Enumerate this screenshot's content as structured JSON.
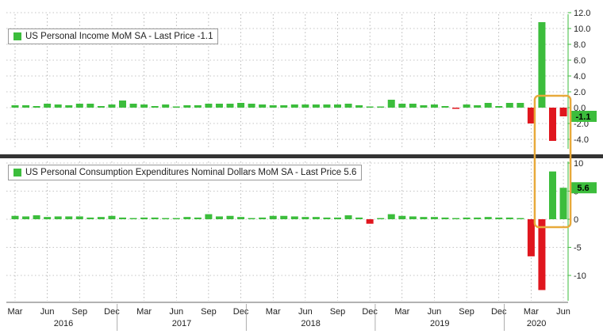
{
  "chart_data": [
    {
      "type": "bar",
      "title": "US Personal Income MoM SA - Last Price -1.1",
      "series": [
        {
          "name": "US Personal Income MoM SA",
          "last_price_label": "Last Price",
          "last_price": "-1.1"
        }
      ],
      "x": [
        "2016-03",
        "2016-04",
        "2016-05",
        "2016-06",
        "2016-07",
        "2016-08",
        "2016-09",
        "2016-10",
        "2016-11",
        "2016-12",
        "2017-01",
        "2017-02",
        "2017-03",
        "2017-04",
        "2017-05",
        "2017-06",
        "2017-07",
        "2017-08",
        "2017-09",
        "2017-10",
        "2017-11",
        "2017-12",
        "2018-01",
        "2018-02",
        "2018-03",
        "2018-04",
        "2018-05",
        "2018-06",
        "2018-07",
        "2018-08",
        "2018-09",
        "2018-10",
        "2018-11",
        "2018-12",
        "2019-01",
        "2019-02",
        "2019-03",
        "2019-04",
        "2019-05",
        "2019-06",
        "2019-07",
        "2019-08",
        "2019-09",
        "2019-10",
        "2019-11",
        "2019-12",
        "2020-01",
        "2020-02",
        "2020-03",
        "2020-04",
        "2020-05",
        "2020-06"
      ],
      "values": [
        0.3,
        0.3,
        0.2,
        0.5,
        0.4,
        0.3,
        0.5,
        0.5,
        0.2,
        0.4,
        0.9,
        0.5,
        0.4,
        0.2,
        0.4,
        0.1,
        0.3,
        0.3,
        0.5,
        0.5,
        0.5,
        0.6,
        0.5,
        0.4,
        0.3,
        0.3,
        0.4,
        0.4,
        0.4,
        0.4,
        0.4,
        0.5,
        0.3,
        0.1,
        0.1,
        1.0,
        0.5,
        0.5,
        0.3,
        0.4,
        0.2,
        -0.1,
        0.4,
        0.3,
        0.6,
        0.2,
        0.6,
        0.6,
        -2.0,
        10.8,
        -4.2,
        -1.1
      ],
      "yticks": [
        "12.0",
        "10.0",
        "8.0",
        "6.0",
        "4.0",
        "2.0",
        "0.0",
        "-2.0",
        "-4.0"
      ],
      "ylim": [
        -5.5,
        12.0
      ],
      "last_label": "-1.1",
      "colors": {
        "positive": "#3cbd3c",
        "negative": "#e0161e"
      }
    },
    {
      "type": "bar",
      "title": "US Personal Consumption Expenditures Nominal Dollars MoM SA - Last Price 5.6",
      "series": [
        {
          "name": "US Personal Consumption Expenditures Nominal Dollars MoM SA",
          "last_price_label": "Last Price",
          "last_price": "5.6"
        }
      ],
      "x": [
        "2016-03",
        "2016-04",
        "2016-05",
        "2016-06",
        "2016-07",
        "2016-08",
        "2016-09",
        "2016-10",
        "2016-11",
        "2016-12",
        "2017-01",
        "2017-02",
        "2017-03",
        "2017-04",
        "2017-05",
        "2017-06",
        "2017-07",
        "2017-08",
        "2017-09",
        "2017-10",
        "2017-11",
        "2017-12",
        "2018-01",
        "2018-02",
        "2018-03",
        "2018-04",
        "2018-05",
        "2018-06",
        "2018-07",
        "2018-08",
        "2018-09",
        "2018-10",
        "2018-11",
        "2018-12",
        "2019-01",
        "2019-02",
        "2019-03",
        "2019-04",
        "2019-05",
        "2019-06",
        "2019-07",
        "2019-08",
        "2019-09",
        "2019-10",
        "2019-11",
        "2019-12",
        "2020-01",
        "2020-02",
        "2020-03",
        "2020-04",
        "2020-05",
        "2020-06"
      ],
      "values": [
        0.6,
        0.5,
        0.7,
        0.4,
        0.5,
        0.5,
        0.5,
        0.3,
        0.4,
        0.6,
        0.3,
        0.2,
        0.3,
        0.3,
        0.2,
        0.2,
        0.4,
        0.3,
        0.9,
        0.5,
        0.6,
        0.4,
        0.2,
        0.3,
        0.6,
        0.6,
        0.5,
        0.4,
        0.4,
        0.3,
        0.3,
        0.7,
        0.3,
        -0.8,
        0.1,
        0.9,
        0.6,
        0.5,
        0.4,
        0.4,
        0.3,
        0.2,
        0.3,
        0.3,
        0.4,
        0.3,
        0.3,
        0.2,
        -6.6,
        -12.6,
        8.5,
        5.6
      ],
      "yticks": [
        "10",
        "5",
        "0",
        "-5",
        "-10"
      ],
      "ylim": [
        -13.5,
        11.5
      ],
      "last_label": "5.6",
      "colors": {
        "positive": "#3cbd3c",
        "negative": "#e0161e"
      }
    }
  ],
  "x_axis": {
    "month_labels": [
      {
        "month": "2016-03",
        "label": "Mar"
      },
      {
        "month": "2016-06",
        "label": "Jun"
      },
      {
        "month": "2016-09",
        "label": "Sep"
      },
      {
        "month": "2016-12",
        "label": "Dec"
      },
      {
        "month": "2017-03",
        "label": "Mar"
      },
      {
        "month": "2017-06",
        "label": "Jun"
      },
      {
        "month": "2017-09",
        "label": "Sep"
      },
      {
        "month": "2017-12",
        "label": "Dec"
      },
      {
        "month": "2018-03",
        "label": "Mar"
      },
      {
        "month": "2018-06",
        "label": "Jun"
      },
      {
        "month": "2018-09",
        "label": "Sep"
      },
      {
        "month": "2018-12",
        "label": "Dec"
      },
      {
        "month": "2019-03",
        "label": "Mar"
      },
      {
        "month": "2019-06",
        "label": "Jun"
      },
      {
        "month": "2019-09",
        "label": "Sep"
      },
      {
        "month": "2019-12",
        "label": "Dec"
      },
      {
        "month": "2020-03",
        "label": "Mar"
      },
      {
        "month": "2020-06",
        "label": "Jun"
      }
    ],
    "year_labels": [
      {
        "label": "2016",
        "from": "2016-03",
        "to": "2016-12"
      },
      {
        "label": "2017",
        "from": "2017-01",
        "to": "2017-12"
      },
      {
        "label": "2018",
        "from": "2018-01",
        "to": "2018-12"
      },
      {
        "label": "2019",
        "from": "2019-01",
        "to": "2019-12"
      },
      {
        "label": "2020",
        "from": "2020-01",
        "to": "2020-06"
      }
    ]
  },
  "annotation": {
    "type": "highlight-box",
    "from": "2020-04",
    "to": "2020-06",
    "color": "#e8a93a"
  },
  "colors": {
    "grid": "#8a8a8a",
    "axis": "#3cbd3c",
    "separator": "#333333"
  }
}
